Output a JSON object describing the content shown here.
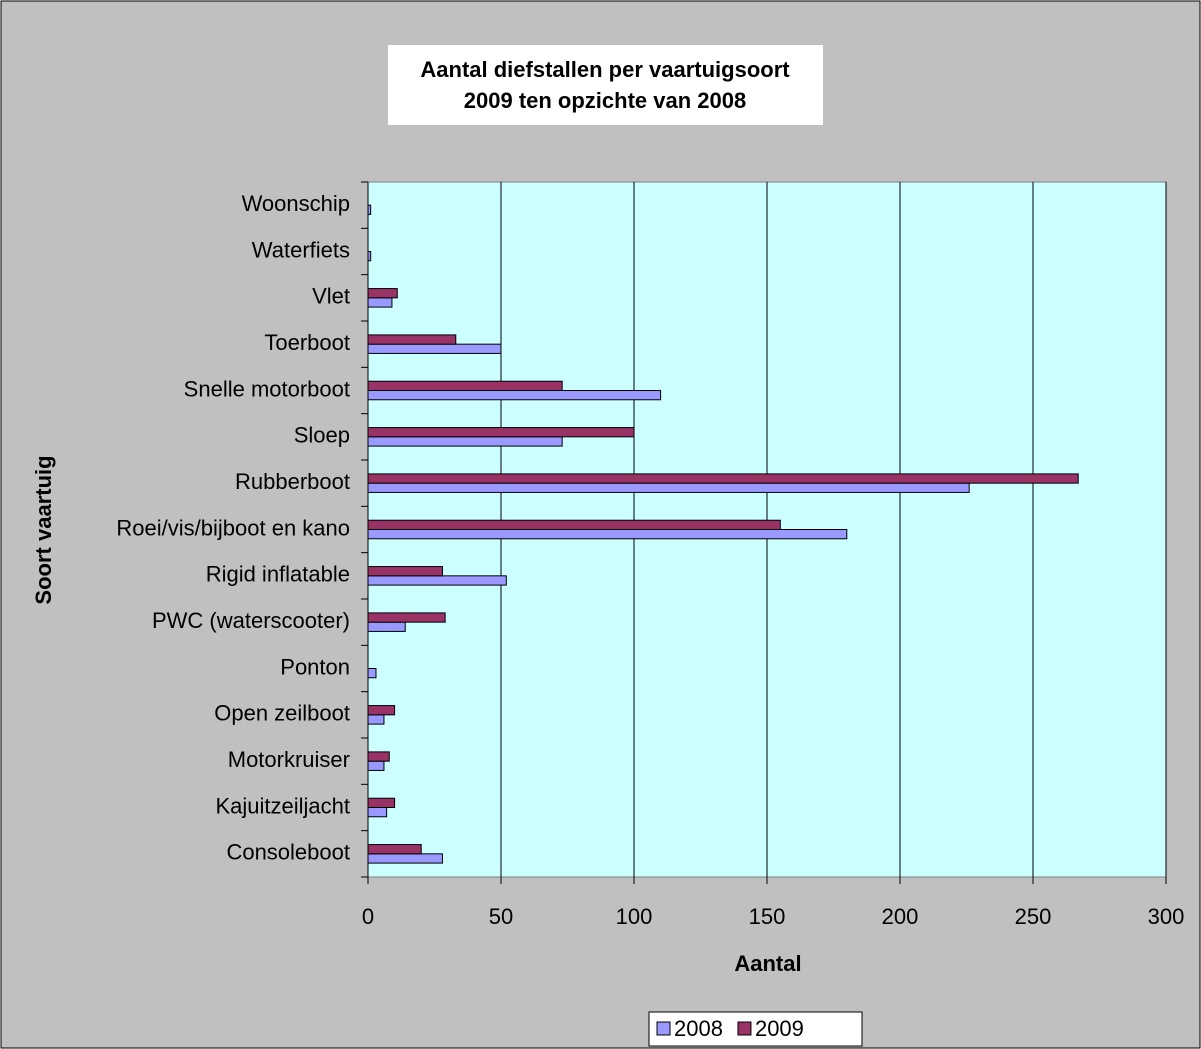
{
  "chart_data": {
    "type": "bar",
    "orientation": "horizontal",
    "title": [
      "Aantal diefstallen per vaartuigsoort",
      "2009 ten opzichte van 2008"
    ],
    "x_label": "Aantal",
    "y_label": "Soort vaartuig",
    "categories": [
      "Consoleboot",
      "Kajuitzeiljacht",
      "Motorkruiser",
      "Open zeilboot",
      "Ponton",
      "PWC (waterscooter)",
      "Rigid inflatable",
      "Roei/vis/bijboot en kano",
      "Rubberboot",
      "Sloep",
      "Snelle motorboot",
      "Toerboot",
      "Vlet",
      "Waterfiets",
      "Woonschip"
    ],
    "series": [
      {
        "name": "2008",
        "color": "#9999ff",
        "values": [
          28,
          7,
          6,
          6,
          3,
          14,
          52,
          180,
          226,
          73,
          110,
          50,
          9,
          1,
          1
        ]
      },
      {
        "name": "2009",
        "color": "#993366",
        "values": [
          20,
          10,
          8,
          10,
          0,
          29,
          28,
          155,
          267,
          100,
          73,
          33,
          11,
          0,
          0
        ]
      }
    ],
    "xlim": [
      0,
      300
    ],
    "xticks": [
      0,
      50,
      100,
      150,
      200,
      250,
      300
    ],
    "grid": true,
    "legend": "bottom"
  }
}
